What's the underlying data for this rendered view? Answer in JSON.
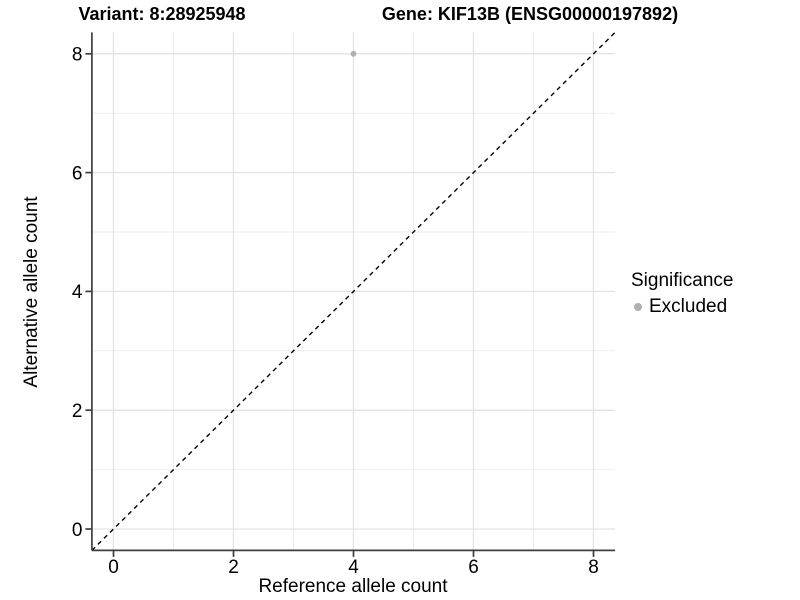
{
  "titles": {
    "variant": "Variant: 8:28925948",
    "gene": "Gene: KIF13B (ENSG00000197892)"
  },
  "chart_data": {
    "type": "scatter",
    "title": "Variant: 8:28925948   Gene: KIF13B (ENSG00000197892)",
    "xlabel": "Reference allele count",
    "ylabel": "Alternative allele count",
    "xlim": [
      -0.36,
      8.36
    ],
    "ylim": [
      -0.36,
      8.36
    ],
    "x_ticks": [
      0,
      2,
      4,
      6,
      8
    ],
    "y_ticks": [
      0,
      2,
      4,
      6,
      8
    ],
    "x_minor_ticks": [
      1,
      3,
      5,
      7
    ],
    "y_minor_ticks": [
      1,
      3,
      5,
      7
    ],
    "grid": "on",
    "points": [
      {
        "x": 4,
        "y": 8,
        "series": "Excluded"
      }
    ],
    "identity_line": {
      "type": "dashed",
      "from": [
        -0.36,
        -0.36
      ],
      "to": [
        8.36,
        8.36
      ]
    },
    "legend": {
      "title": "Significance",
      "position": "right",
      "items": [
        {
          "label": "Excluded",
          "color": "#b0b0b0"
        }
      ]
    }
  },
  "colors": {
    "point": "#b0b0b0",
    "grid_major": "#e3e3e3",
    "grid_minor": "#eeeeee",
    "axis": "#3f3f3f",
    "identity_line": "#000000",
    "text": "#000000",
    "background": "#ffffff"
  }
}
